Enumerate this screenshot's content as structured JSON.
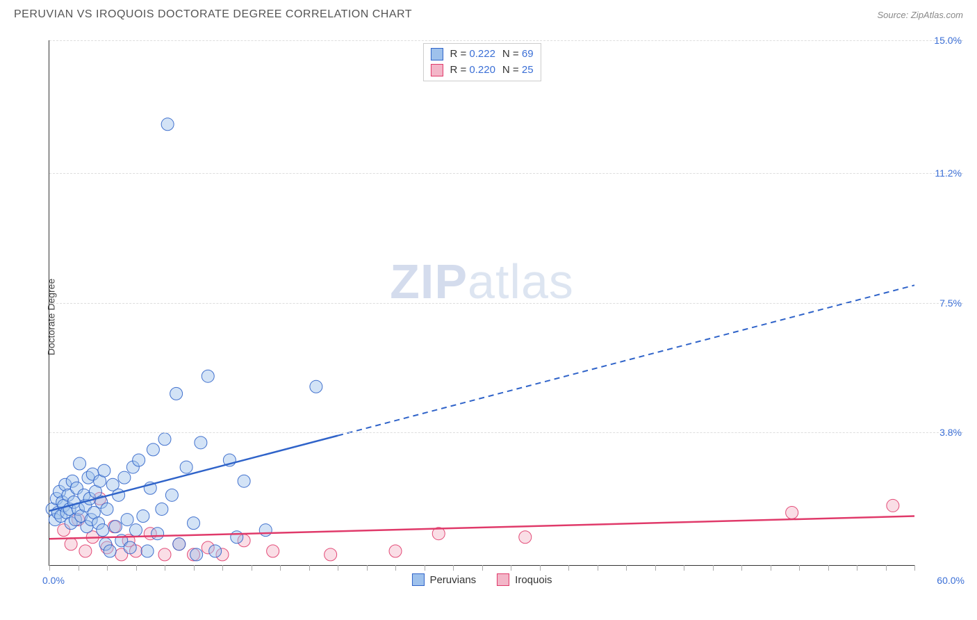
{
  "header": {
    "title": "PERUVIAN VS IROQUOIS DOCTORATE DEGREE CORRELATION CHART",
    "source": "Source: ZipAtlas.com"
  },
  "watermark": {
    "zip": "ZIP",
    "atlas": "atlas"
  },
  "chart": {
    "type": "scatter",
    "ylabel": "Doctorate Degree",
    "background_color": "#ffffff",
    "grid_color": "#dddddd",
    "axis_color": "#333333",
    "value_label_color": "#3b6fd6",
    "xlim": [
      0,
      60
    ],
    "ylim": [
      0,
      15
    ],
    "xlim_labels": {
      "min": "0.0%",
      "max": "60.0%"
    },
    "xtick_step": 2,
    "y_gridlines": [
      {
        "y": 3.8,
        "label": "3.8%"
      },
      {
        "y": 7.5,
        "label": "7.5%"
      },
      {
        "y": 11.2,
        "label": "11.2%"
      },
      {
        "y": 15.0,
        "label": "15.0%"
      }
    ],
    "marker_radius": 9,
    "marker_opacity": 0.45,
    "marker_stroke_opacity": 0.9,
    "line_width_solid": 2.5,
    "line_width_dashed": 2,
    "dash_pattern": "8,6",
    "series": [
      {
        "name": "Peruvians",
        "color": "#2f63c9",
        "fill": "#9ec1ec",
        "stats": {
          "R": "0.222",
          "N": "69"
        },
        "regression": {
          "y_at_xmin": 1.55,
          "y_at_xmax": 8.0,
          "solid_until_x": 20
        },
        "points": [
          [
            0.2,
            1.6
          ],
          [
            0.4,
            1.3
          ],
          [
            0.5,
            1.9
          ],
          [
            0.6,
            1.5
          ],
          [
            0.7,
            2.1
          ],
          [
            0.8,
            1.4
          ],
          [
            0.9,
            1.8
          ],
          [
            1.0,
            1.7
          ],
          [
            1.1,
            2.3
          ],
          [
            1.2,
            1.5
          ],
          [
            1.3,
            2.0
          ],
          [
            1.4,
            1.6
          ],
          [
            1.5,
            1.2
          ],
          [
            1.6,
            2.4
          ],
          [
            1.7,
            1.8
          ],
          [
            1.8,
            1.3
          ],
          [
            1.9,
            2.2
          ],
          [
            2.0,
            1.6
          ],
          [
            2.1,
            2.9
          ],
          [
            2.2,
            1.4
          ],
          [
            2.4,
            2.0
          ],
          [
            2.5,
            1.7
          ],
          [
            2.6,
            1.1
          ],
          [
            2.7,
            2.5
          ],
          [
            2.8,
            1.9
          ],
          [
            2.9,
            1.3
          ],
          [
            3.0,
            2.6
          ],
          [
            3.1,
            1.5
          ],
          [
            3.2,
            2.1
          ],
          [
            3.4,
            1.2
          ],
          [
            3.5,
            2.4
          ],
          [
            3.6,
            1.8
          ],
          [
            3.7,
            1.0
          ],
          [
            3.8,
            2.7
          ],
          [
            3.9,
            0.6
          ],
          [
            4.0,
            1.6
          ],
          [
            4.2,
            0.4
          ],
          [
            4.4,
            2.3
          ],
          [
            4.6,
            1.1
          ],
          [
            4.8,
            2.0
          ],
          [
            5.0,
            0.7
          ],
          [
            5.2,
            2.5
          ],
          [
            5.4,
            1.3
          ],
          [
            5.6,
            0.5
          ],
          [
            5.8,
            2.8
          ],
          [
            6.0,
            1.0
          ],
          [
            6.2,
            3.0
          ],
          [
            6.5,
            1.4
          ],
          [
            6.8,
            0.4
          ],
          [
            7.0,
            2.2
          ],
          [
            7.2,
            3.3
          ],
          [
            7.5,
            0.9
          ],
          [
            7.8,
            1.6
          ],
          [
            8.0,
            3.6
          ],
          [
            8.2,
            12.6
          ],
          [
            8.5,
            2.0
          ],
          [
            8.8,
            4.9
          ],
          [
            9.0,
            0.6
          ],
          [
            9.5,
            2.8
          ],
          [
            10.0,
            1.2
          ],
          [
            10.5,
            3.5
          ],
          [
            11.0,
            5.4
          ],
          [
            11.5,
            0.4
          ],
          [
            12.5,
            3.0
          ],
          [
            13.0,
            0.8
          ],
          [
            13.5,
            2.4
          ],
          [
            15.0,
            1.0
          ],
          [
            18.5,
            5.1
          ],
          [
            10.2,
            0.3
          ]
        ]
      },
      {
        "name": "Iroquois",
        "color": "#e03a6a",
        "fill": "#f3b6c8",
        "stats": {
          "R": "0.220",
          "N": "25"
        },
        "regression": {
          "y_at_xmin": 0.75,
          "y_at_xmax": 1.4,
          "solid_until_x": 60
        },
        "points": [
          [
            1.0,
            1.0
          ],
          [
            1.5,
            0.6
          ],
          [
            2.0,
            1.3
          ],
          [
            2.5,
            0.4
          ],
          [
            3.0,
            0.8
          ],
          [
            3.5,
            1.9
          ],
          [
            4.0,
            0.5
          ],
          [
            4.5,
            1.1
          ],
          [
            5.0,
            0.3
          ],
          [
            5.5,
            0.7
          ],
          [
            6.0,
            0.4
          ],
          [
            7.0,
            0.9
          ],
          [
            8.0,
            0.3
          ],
          [
            9.0,
            0.6
          ],
          [
            10.0,
            0.3
          ],
          [
            11.0,
            0.5
          ],
          [
            12.0,
            0.3
          ],
          [
            13.5,
            0.7
          ],
          [
            15.5,
            0.4
          ],
          [
            19.5,
            0.3
          ],
          [
            24.0,
            0.4
          ],
          [
            27.0,
            0.9
          ],
          [
            51.5,
            1.5
          ],
          [
            58.5,
            1.7
          ],
          [
            33.0,
            0.8
          ]
        ]
      }
    ],
    "stat_box": {
      "r_label": "R = ",
      "n_label": "N = "
    }
  }
}
